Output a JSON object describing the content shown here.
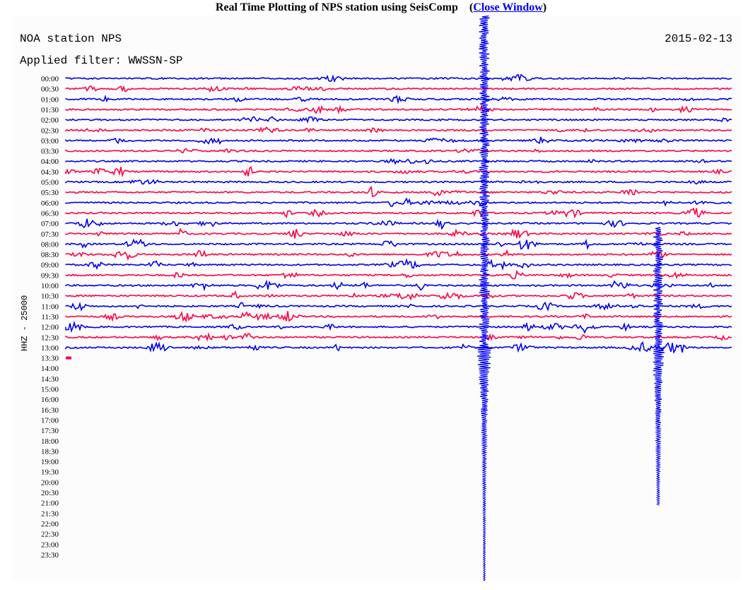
{
  "page": {
    "title": "Real Time Plotting of NPS station using SeisComp",
    "open_paren": "(",
    "close_link": "Close Window",
    "close_paren": ")"
  },
  "chart_data": {
    "type": "line",
    "title": "NOA station NPS",
    "date": "2015-02-13",
    "filter_label": "Applied filter: WWSSN-SP",
    "channel_label": "HHZ - 25000",
    "colors": {
      "odd_rows": "#0000ee",
      "even_rows": "#ff0044",
      "link": "#0000ee"
    },
    "rows": [
      "00:00",
      "00:30",
      "01:00",
      "01:30",
      "02:00",
      "02:30",
      "03:00",
      "03:30",
      "04:00",
      "04:30",
      "05:00",
      "05:30",
      "06:00",
      "06:30",
      "07:00",
      "07:30",
      "08:00",
      "08:30",
      "09:00",
      "09:30",
      "10:00",
      "10:30",
      "11:00",
      "11:30",
      "12:00",
      "12:30",
      "13:00",
      "13:30",
      "14:00",
      "14:30",
      "15:00",
      "16:00",
      "16:30",
      "17:00",
      "17:30",
      "18:00",
      "18:30",
      "19:00",
      "19:30",
      "20:00",
      "20:30",
      "21:00",
      "21:30",
      "22:00",
      "22:30",
      "23:00",
      "23:30"
    ],
    "rows_with_data": 27,
    "partial_row": "13:30",
    "x_range_minutes": [
      0,
      30
    ],
    "grid": false
  }
}
